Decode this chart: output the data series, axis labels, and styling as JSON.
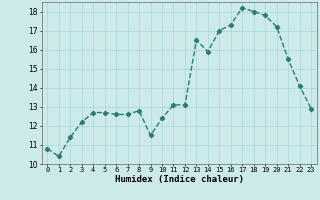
{
  "x": [
    0,
    1,
    2,
    3,
    4,
    5,
    6,
    7,
    8,
    9,
    10,
    11,
    12,
    13,
    14,
    15,
    16,
    17,
    18,
    19,
    20,
    21,
    22,
    23
  ],
  "y": [
    10.8,
    10.4,
    11.4,
    12.2,
    12.7,
    12.7,
    12.6,
    12.6,
    12.8,
    11.5,
    12.4,
    13.1,
    13.1,
    16.5,
    15.9,
    17.0,
    17.3,
    18.2,
    18.0,
    17.8,
    17.2,
    15.5,
    14.1,
    12.9
  ],
  "line_color": "#2d7d6e",
  "marker": "D",
  "markersize": 2.2,
  "linewidth": 1.0,
  "xlabel": "Humidex (Indice chaleur)",
  "xlim": [
    -0.5,
    23.5
  ],
  "ylim": [
    10,
    18.5
  ],
  "yticks": [
    10,
    11,
    12,
    13,
    14,
    15,
    16,
    17,
    18
  ],
  "xticks": [
    0,
    1,
    2,
    3,
    4,
    5,
    6,
    7,
    8,
    9,
    10,
    11,
    12,
    13,
    14,
    15,
    16,
    17,
    18,
    19,
    20,
    21,
    22,
    23
  ],
  "xtick_labels": [
    "0",
    "1",
    "2",
    "3",
    "4",
    "5",
    "6",
    "7",
    "8",
    "9",
    "10",
    "11",
    "12",
    "13",
    "14",
    "15",
    "16",
    "17",
    "18",
    "19",
    "20",
    "21",
    "22",
    "23"
  ],
  "background_color": "#cceaea",
  "grid_color": "#aad4d4",
  "fig_bg": "#cceaea",
  "xlabel_fontsize": 6.5,
  "xtick_fontsize": 5.0,
  "ytick_fontsize": 5.5
}
